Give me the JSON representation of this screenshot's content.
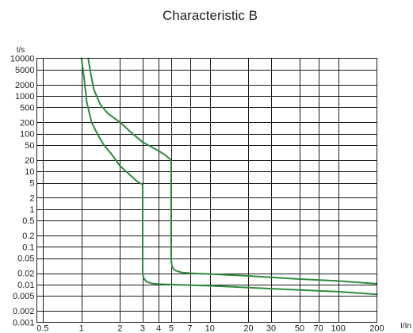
{
  "chart_data": {
    "type": "line",
    "title": "Characteristic B",
    "xlabel": "I/In",
    "ylabel": "t/s",
    "xscale": "log",
    "yscale": "log",
    "xlim": [
      0.45,
      200
    ],
    "ylim": [
      0.001,
      10000
    ],
    "grid": true,
    "curve_color": "#2e8b3c",
    "x_ticks": [
      {
        "value": 0.5,
        "label": "0.5"
      },
      {
        "value": 1,
        "label": "1"
      },
      {
        "value": 2,
        "label": "2"
      },
      {
        "value": 3,
        "label": "3"
      },
      {
        "value": 4,
        "label": "4"
      },
      {
        "value": 5,
        "label": "5"
      },
      {
        "value": 7,
        "label": "7"
      },
      {
        "value": 10,
        "label": "10"
      },
      {
        "value": 20,
        "label": "20"
      },
      {
        "value": 30,
        "label": "30"
      },
      {
        "value": 50,
        "label": "50"
      },
      {
        "value": 70,
        "label": "70"
      },
      {
        "value": 100,
        "label": "100"
      },
      {
        "value": 200,
        "label": "200"
      }
    ],
    "y_ticks": [
      {
        "value": 0.001,
        "label": "0.001"
      },
      {
        "value": 0.002,
        "label": "0.002"
      },
      {
        "value": 0.005,
        "label": "0.005"
      },
      {
        "value": 0.01,
        "label": "0.01"
      },
      {
        "value": 0.02,
        "label": "0.02"
      },
      {
        "value": 0.05,
        "label": "0.05"
      },
      {
        "value": 0.1,
        "label": "0.1"
      },
      {
        "value": 0.2,
        "label": "0.2"
      },
      {
        "value": 0.5,
        "label": "0.5"
      },
      {
        "value": 1,
        "label": "1"
      },
      {
        "value": 2,
        "label": "2"
      },
      {
        "value": 5,
        "label": "5"
      },
      {
        "value": 10,
        "label": "10"
      },
      {
        "value": 20,
        "label": "20"
      },
      {
        "value": 50,
        "label": "50"
      },
      {
        "value": 100,
        "label": "100"
      },
      {
        "value": 200,
        "label": "200"
      },
      {
        "value": 500,
        "label": "500"
      },
      {
        "value": 1000,
        "label": "1000"
      },
      {
        "value": 2000,
        "label": "2000"
      },
      {
        "value": 5000,
        "label": "5000"
      },
      {
        "value": 10000,
        "label": "10000"
      }
    ],
    "series": [
      {
        "x": [
          1.0,
          1.05,
          1.1,
          1.2,
          1.35,
          1.5,
          1.7,
          2.0,
          2.4,
          2.7,
          3.0,
          3.0,
          3.05,
          3.2,
          3.5,
          4.0,
          5.0,
          10,
          20,
          50,
          100,
          200
        ],
        "y": [
          10000,
          3000,
          700,
          200,
          90,
          50,
          30,
          14,
          8,
          5.5,
          4.5,
          0.02,
          0.015,
          0.012,
          0.0108,
          0.0103,
          0.01,
          0.0093,
          0.0083,
          0.0072,
          0.0065,
          0.0055
        ]
      },
      {
        "x": [
          1.13,
          1.18,
          1.25,
          1.4,
          1.6,
          2.0,
          2.5,
          3.0,
          3.5,
          4.0,
          4.5,
          5.0,
          5.0,
          5.08,
          5.3,
          6.0,
          7.0,
          10,
          20,
          50,
          100,
          200
        ],
        "y": [
          10000,
          4000,
          1500,
          600,
          350,
          200,
          100,
          60,
          45,
          35,
          27,
          20,
          0.045,
          0.03,
          0.024,
          0.021,
          0.02,
          0.019,
          0.017,
          0.014,
          0.0125,
          0.0105
        ]
      }
    ]
  }
}
